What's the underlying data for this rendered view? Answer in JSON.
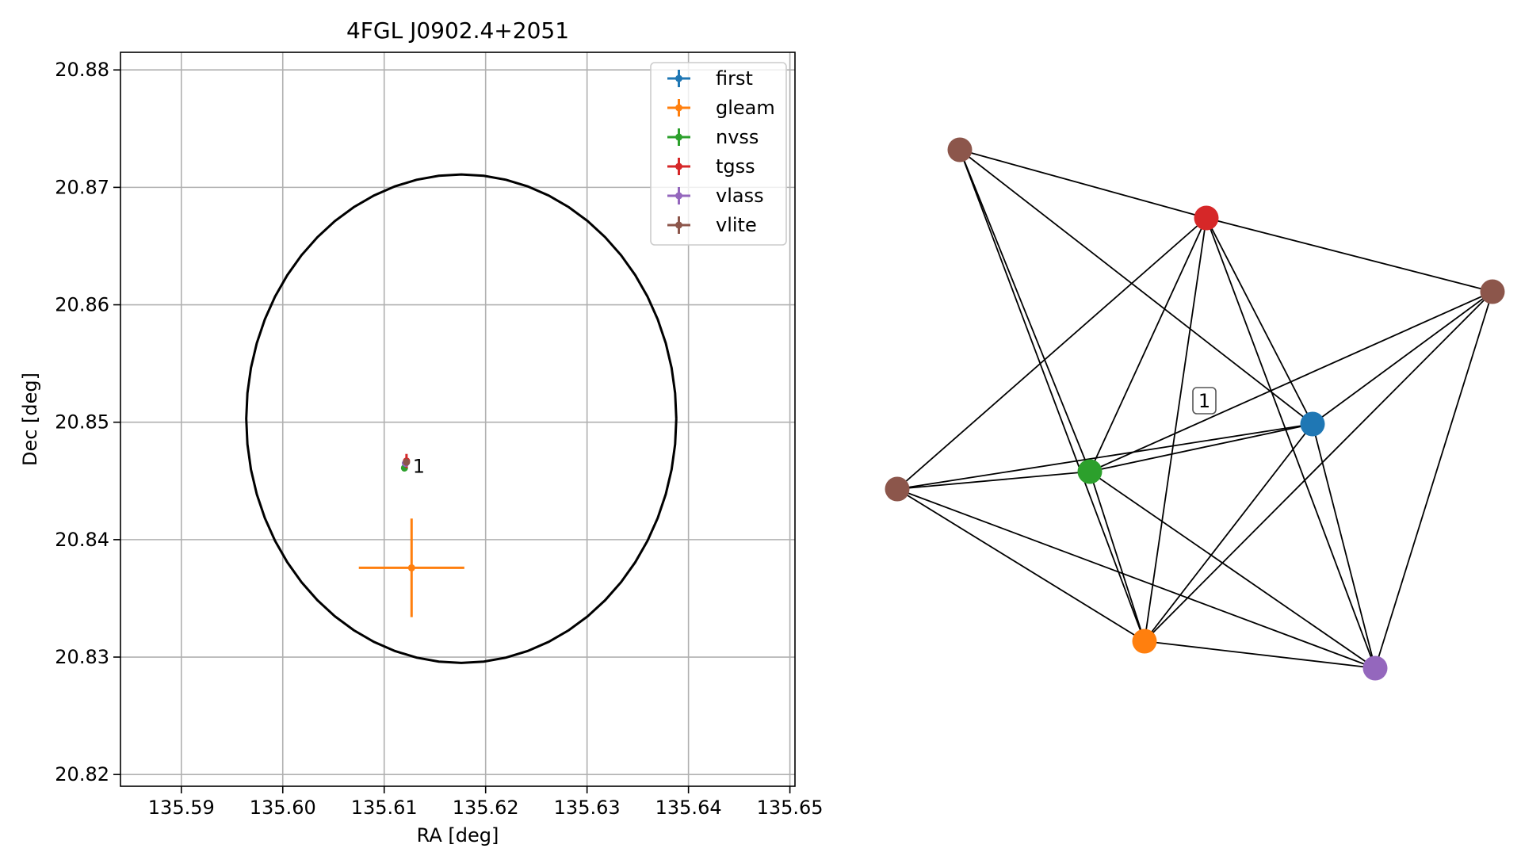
{
  "figure": {
    "background": "#ffffff"
  },
  "chart_data": [
    {
      "type": "scatter",
      "title": "4FGL J0902.4+2051",
      "xlabel": "RA [deg]",
      "ylabel": "Dec [deg]",
      "xlim": [
        135.584,
        135.6505
      ],
      "ylim": [
        20.819,
        20.8815
      ],
      "xticks": [
        135.59,
        135.6,
        135.61,
        135.62,
        135.63,
        135.64,
        135.65
      ],
      "xtick_labels": [
        "135.59",
        "135.60",
        "135.61",
        "135.62",
        "135.63",
        "135.64",
        "135.65"
      ],
      "yticks": [
        20.82,
        20.83,
        20.84,
        20.85,
        20.86,
        20.87,
        20.88
      ],
      "ytick_labels": [
        "20.82",
        "20.83",
        "20.84",
        "20.85",
        "20.86",
        "20.87",
        "20.88"
      ],
      "grid": true,
      "legend_position": "top-right",
      "series": [
        {
          "name": "first",
          "color": "#1f77b4",
          "x": 135.6121,
          "y": 20.8465,
          "xerr": 0.00012,
          "yerr": 0.00012
        },
        {
          "name": "gleam",
          "color": "#ff7f0e",
          "x": 135.6127,
          "y": 20.8376,
          "xerr": 0.0052,
          "yerr": 0.0042
        },
        {
          "name": "nvss",
          "color": "#2ca02c",
          "x": 135.612,
          "y": 20.8461,
          "xerr": 0.0002,
          "yerr": 0.0002
        },
        {
          "name": "tgss",
          "color": "#d62728",
          "x": 135.6122,
          "y": 20.8467,
          "xerr": 0.0003,
          "yerr": 0.0006
        },
        {
          "name": "vlass",
          "color": "#9467bd",
          "x": 135.6121,
          "y": 20.8465,
          "xerr": 0.0001,
          "yerr": 0.0001
        },
        {
          "name": "vlite",
          "color": "#8c564b",
          "x": 135.6122,
          "y": 20.8466,
          "xerr": 0.0002,
          "yerr": 0.0003
        }
      ],
      "ellipse": {
        "center": [
          135.6176,
          20.8503
        ],
        "semi_axis_ra": 0.0212,
        "semi_axis_dec": 0.0208,
        "color": "#000000"
      },
      "annotations": [
        {
          "text": "1",
          "x": 135.6125,
          "y": 20.8463
        }
      ]
    },
    {
      "type": "network",
      "annotation": "1",
      "nodes": [
        {
          "id": "vlite_a",
          "color": "#8c564b"
        },
        {
          "id": "tgss",
          "color": "#d62728"
        },
        {
          "id": "vlite_b",
          "color": "#8c564b"
        },
        {
          "id": "first",
          "color": "#1f77b4"
        },
        {
          "id": "nvss",
          "color": "#2ca02c"
        },
        {
          "id": "vlite_c",
          "color": "#8c564b"
        },
        {
          "id": "gleam",
          "color": "#ff7f0e"
        },
        {
          "id": "vlass",
          "color": "#9467bd"
        }
      ],
      "edges": [
        [
          "vlite_a",
          "tgss"
        ],
        [
          "vlite_a",
          "first"
        ],
        [
          "vlite_a",
          "nvss"
        ],
        [
          "vlite_a",
          "gleam"
        ],
        [
          "tgss",
          "vlite_b"
        ],
        [
          "tgss",
          "vlite_c"
        ],
        [
          "tgss",
          "nvss"
        ],
        [
          "tgss",
          "gleam"
        ],
        [
          "tgss",
          "first"
        ],
        [
          "tgss",
          "vlass"
        ],
        [
          "vlite_b",
          "nvss"
        ],
        [
          "vlite_b",
          "first"
        ],
        [
          "vlite_b",
          "gleam"
        ],
        [
          "vlite_b",
          "vlass"
        ],
        [
          "first",
          "vlite_c"
        ],
        [
          "first",
          "nvss"
        ],
        [
          "first",
          "gleam"
        ],
        [
          "first",
          "vlass"
        ],
        [
          "nvss",
          "vlite_c"
        ],
        [
          "nvss",
          "gleam"
        ],
        [
          "nvss",
          "vlass"
        ],
        [
          "vlite_c",
          "gleam"
        ],
        [
          "vlite_c",
          "vlass"
        ],
        [
          "gleam",
          "vlass"
        ]
      ]
    }
  ]
}
